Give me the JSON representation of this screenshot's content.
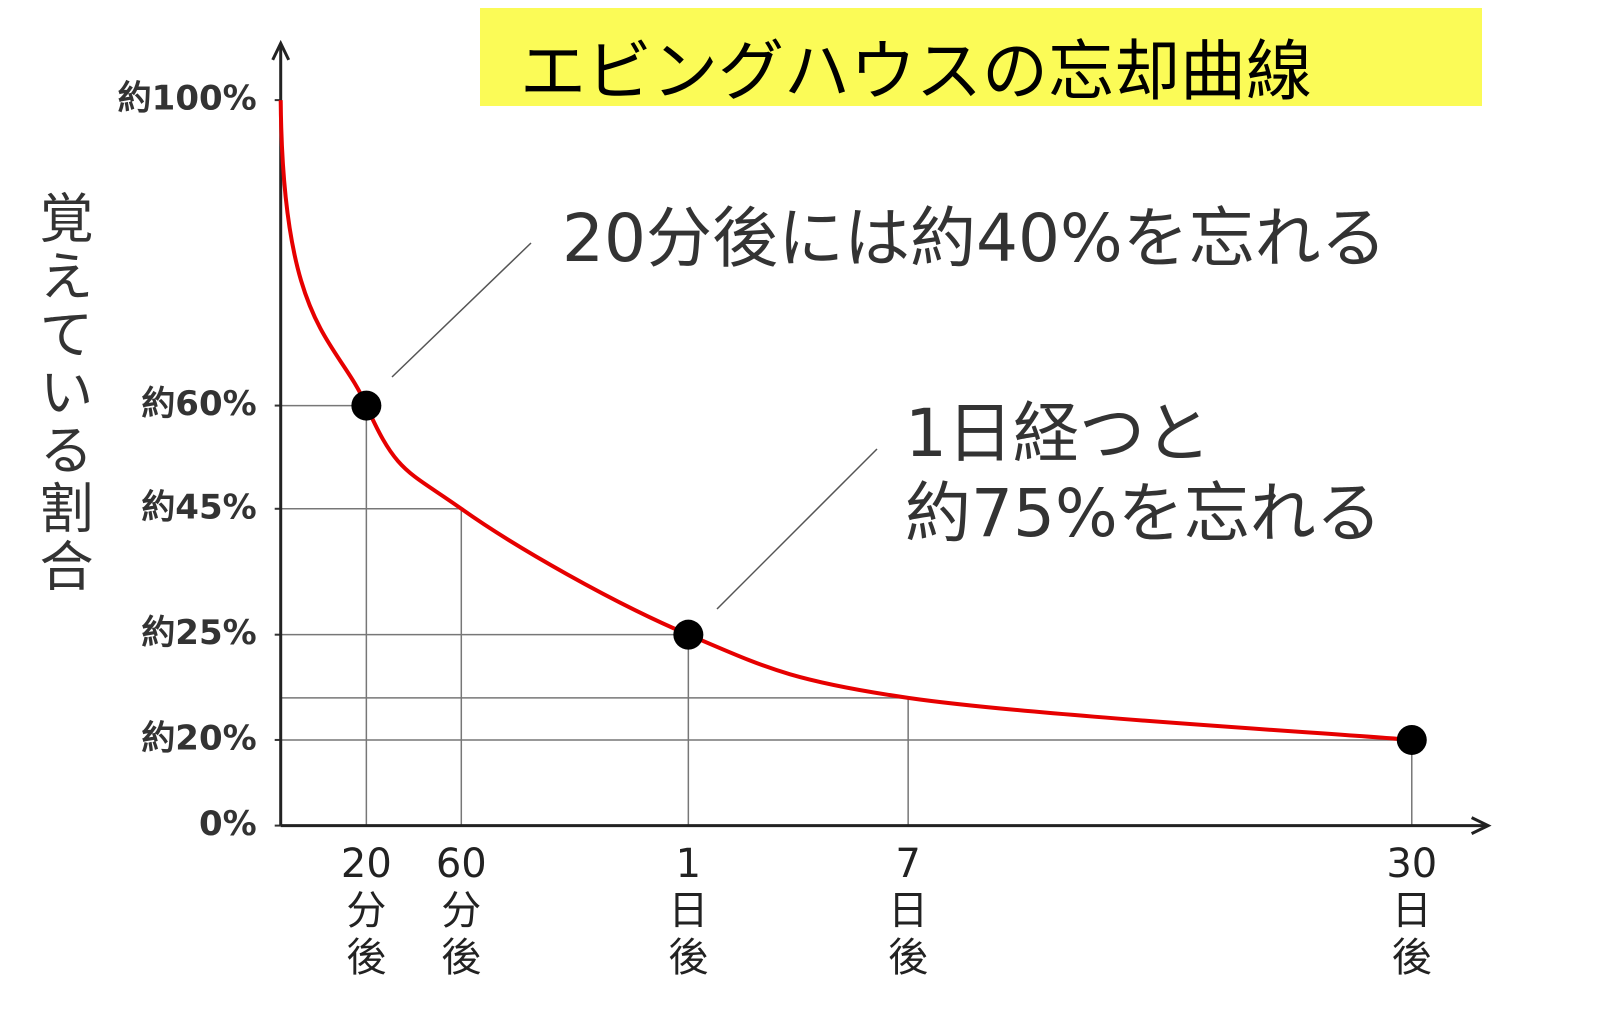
{
  "chart_data": {
    "type": "line",
    "title": "エビングハウスの忘却曲線",
    "y_label": "覚えている割合",
    "categories": [
      null,
      "20分後",
      "60分後",
      "1日後",
      "7日後",
      "30日後"
    ],
    "series": [
      {
        "color": "#e60000",
        "values": [
          100,
          60,
          45,
          25,
          22,
          20
        ]
      },
      {
        "color": "#000000",
        "values": [
          null,
          60,
          null,
          25,
          null,
          20
        ]
      }
    ],
    "ylim": [
      0,
      100
    ],
    "yticks": [
      {
        "value": 0,
        "label": "0%"
      },
      {
        "value": 20,
        "label": "約20%"
      },
      {
        "value": 25,
        "label": "約25%"
      },
      {
        "value": 45,
        "label": "約45%"
      },
      {
        "value": 60,
        "label": "約60%"
      },
      {
        "value": 100,
        "label": "約100%"
      }
    ],
    "annotations": [
      "20分後には約40%を忘れる",
      "1日経つと",
      "約75%を忘れる"
    ]
  }
}
